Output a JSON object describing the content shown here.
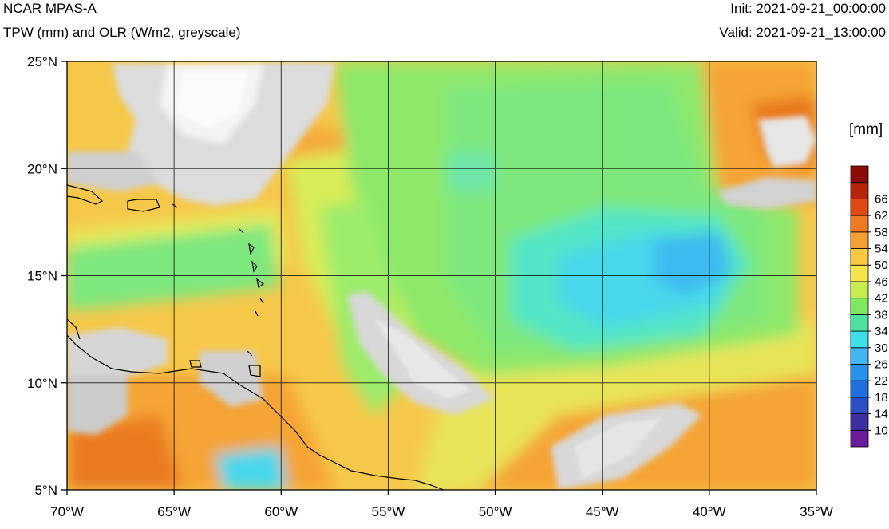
{
  "header": {
    "title": "NCAR MPAS-A",
    "subtitle": "TPW (mm) and OLR (W/m2, greyscale)",
    "init": "Init: 2021-09-21_00:00:00",
    "valid": "Valid: 2021-09-21_13:00:00"
  },
  "map": {
    "lon_range": [
      -70,
      -35
    ],
    "lat_range": [
      5,
      25
    ],
    "lon_ticks": [
      {
        "value": -70,
        "label": "70°W"
      },
      {
        "value": -65,
        "label": "65°W"
      },
      {
        "value": -60,
        "label": "60°W"
      },
      {
        "value": -55,
        "label": "55°W"
      },
      {
        "value": -50,
        "label": "50°W"
      },
      {
        "value": -45,
        "label": "45°W"
      },
      {
        "value": -40,
        "label": "40°W"
      },
      {
        "value": -35,
        "label": "35°W"
      }
    ],
    "lat_ticks": [
      {
        "value": 25,
        "label": "25°N"
      },
      {
        "value": 20,
        "label": "20°N"
      },
      {
        "value": 15,
        "label": "15°N"
      },
      {
        "value": 10,
        "label": "10°N"
      },
      {
        "value": 5,
        "label": "5°N"
      }
    ],
    "gridlines": true
  },
  "colorbar": {
    "label": "[mm]",
    "ticks": [
      "10",
      "14",
      "18",
      "22",
      "26",
      "30",
      "34",
      "38",
      "42",
      "46",
      "50",
      "54",
      "58",
      "62",
      "66"
    ],
    "colors": [
      "#6a1b9a",
      "#3d2fa0",
      "#2b4fc7",
      "#1f6fe0",
      "#2892ea",
      "#41b6f2",
      "#3de0e8",
      "#4fe0a0",
      "#7ee860",
      "#c6ec50",
      "#f6e44c",
      "#f8c840",
      "#f6a034",
      "#f07a22",
      "#e04a12",
      "#b82408",
      "#8a0c04"
    ]
  }
}
